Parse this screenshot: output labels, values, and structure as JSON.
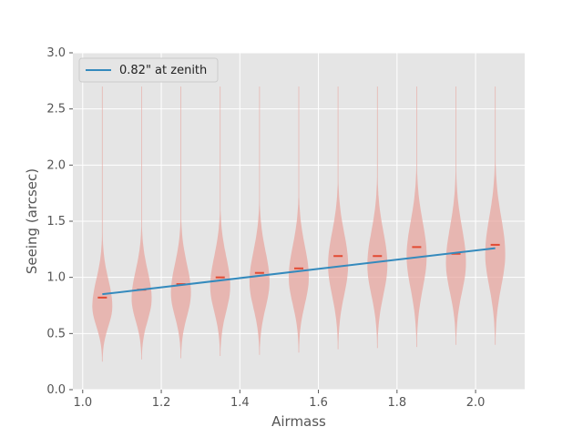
{
  "chart_data": {
    "type": "violin",
    "xlabel": "Airmass",
    "ylabel": "Seeing (arcsec)",
    "xlim": [
      0.975,
      2.125
    ],
    "ylim": [
      0.0,
      3.0
    ],
    "xticks": [
      1.0,
      1.2,
      1.4,
      1.6,
      1.8,
      2.0
    ],
    "xtick_labels": [
      "1.0",
      "1.2",
      "1.4",
      "1.6",
      "1.8",
      "2.0"
    ],
    "yticks": [
      0.0,
      0.5,
      1.0,
      1.5,
      2.0,
      2.5,
      3.0
    ],
    "ytick_labels": [
      "0.0",
      "0.5",
      "1.0",
      "1.5",
      "2.0",
      "2.5",
      "3.0"
    ],
    "grid": true,
    "legend_position": "top-left",
    "violin_color": "#e8a39b",
    "median_color": "#e24a33",
    "fit_color": "#348abd",
    "background_color": "#e5e5e5",
    "violins": [
      {
        "airmass": 1.05,
        "median": 0.82,
        "min": 0.25,
        "max": 2.7
      },
      {
        "airmass": 1.15,
        "median": 0.89,
        "min": 0.27,
        "max": 2.7
      },
      {
        "airmass": 1.25,
        "median": 0.94,
        "min": 0.28,
        "max": 2.7
      },
      {
        "airmass": 1.35,
        "median": 1.0,
        "min": 0.3,
        "max": 2.7
      },
      {
        "airmass": 1.45,
        "median": 1.04,
        "min": 0.31,
        "max": 2.7
      },
      {
        "airmass": 1.55,
        "median": 1.08,
        "min": 0.33,
        "max": 2.7
      },
      {
        "airmass": 1.65,
        "median": 1.19,
        "min": 0.36,
        "max": 2.7
      },
      {
        "airmass": 1.75,
        "median": 1.19,
        "min": 0.37,
        "max": 2.7
      },
      {
        "airmass": 1.85,
        "median": 1.27,
        "min": 0.38,
        "max": 2.7
      },
      {
        "airmass": 1.95,
        "median": 1.21,
        "min": 0.4,
        "max": 2.7
      },
      {
        "airmass": 2.05,
        "median": 1.29,
        "min": 0.4,
        "max": 2.7
      }
    ],
    "fit_line": {
      "name": "0.82\" at zenith",
      "x": [
        1.05,
        2.05
      ],
      "y": [
        0.85,
        1.26
      ]
    }
  }
}
